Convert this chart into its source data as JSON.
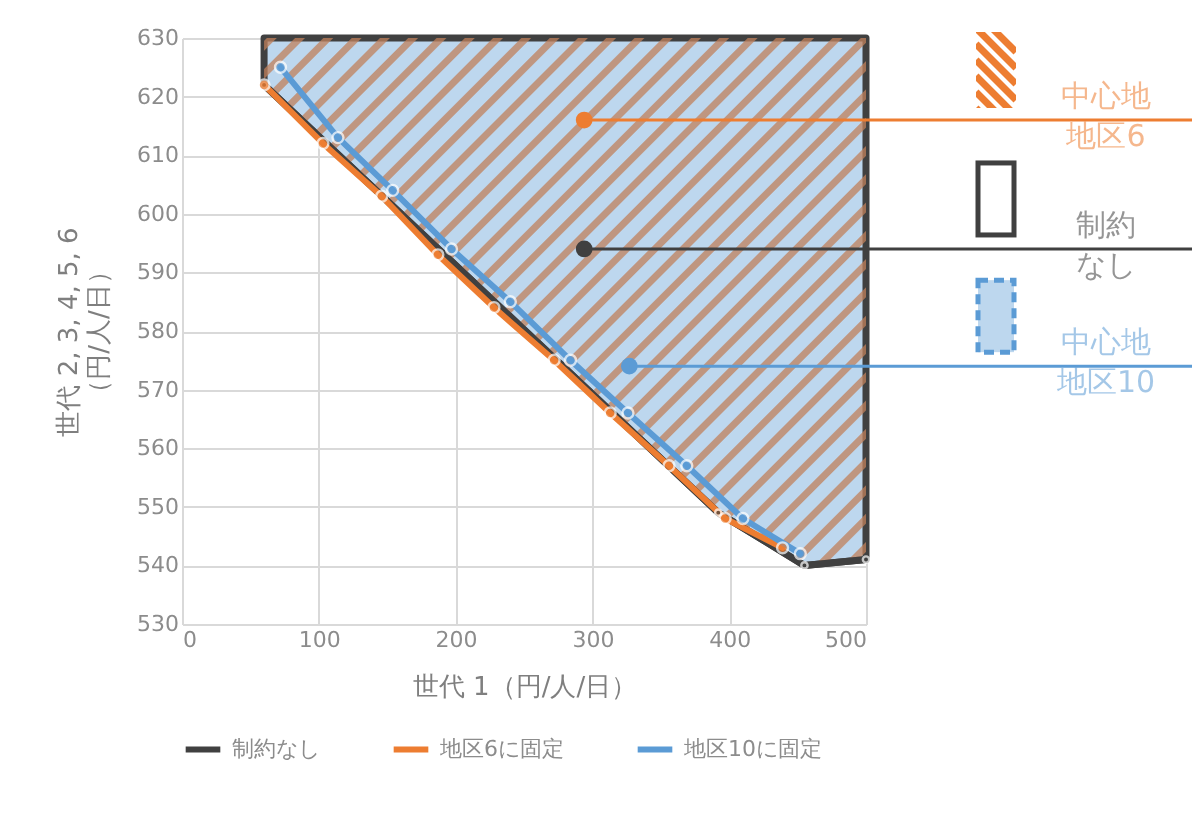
{
  "chart_data": {
    "type": "line",
    "xlabel": "世代 1（円/人/日）",
    "ylabel": "世代 2, 3, 4, 5, 6\n（円/人/日）",
    "xlim": [
      0,
      500
    ],
    "xticks": [
      0,
      100,
      200,
      300,
      400,
      500
    ],
    "ylim": [
      530,
      630
    ],
    "yticks": [
      530,
      540,
      550,
      560,
      570,
      580,
      590,
      600,
      610,
      620,
      630
    ],
    "grid": true,
    "legend": "bottom",
    "marker": "circle",
    "series": [
      {
        "name": "制約なし",
        "color": "#404040",
        "x": [
          60,
          392,
          455,
          500
        ],
        "values": [
          622,
          549,
          540,
          541
        ],
        "lower": [
          622,
          549,
          540,
          541
        ],
        "upper": [
          630,
          630,
          630,
          630
        ]
      },
      {
        "name": "地区6に固定",
        "color": "#ed7d31",
        "x": [
          60,
          103,
          146,
          187,
          228,
          272,
          313,
          356,
          397,
          439
        ],
        "values": [
          622,
          612,
          603,
          593,
          584,
          575,
          566,
          557,
          548,
          543
        ]
      },
      {
        "name": "地区10に固定",
        "color": "#5b9bd5",
        "x": [
          72,
          114,
          154,
          197,
          240,
          284,
          326,
          369,
          410,
          452
        ],
        "values": [
          625,
          613,
          604,
          594,
          585,
          575,
          566,
          557,
          548,
          542
        ]
      },
      {
        "type": "scatter",
        "color": "#ed7d31",
        "x": [
          294
        ],
        "values": [
          616
        ]
      },
      {
        "type": "scatter",
        "color": "#404040",
        "x": [
          294
        ],
        "values": [
          594
        ]
      },
      {
        "type": "scatter",
        "color": "#5b9bd5",
        "x": [
          327
        ],
        "values": [
          574
        ]
      }
    ],
    "ref_lines": [
      {
        "axis": "y",
        "value": 616,
        "label": "中心地地区6",
        "color": "#ed7d31"
      },
      {
        "axis": "y",
        "value": 594,
        "label": "制約なし",
        "color": "#404040"
      },
      {
        "axis": "y",
        "value": 574,
        "label": "中心地地区10",
        "color": "#5b9bd5"
      }
    ]
  }
}
